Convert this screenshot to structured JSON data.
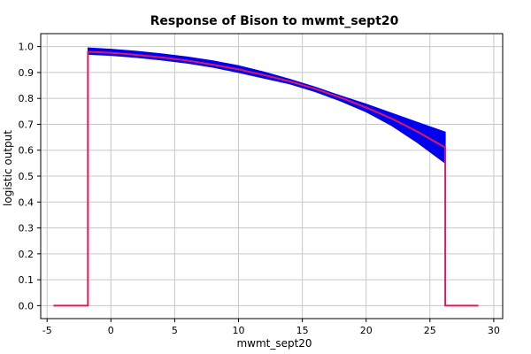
{
  "chart_data": {
    "type": "line",
    "title": "Response of Bison to mwmt_sept20",
    "xlabel": "mwmt_sept20",
    "ylabel": "logistic output",
    "xlim": [
      -5.5,
      30.7
    ],
    "ylim": [
      -0.05,
      1.05
    ],
    "x_ticks": [
      -5,
      0,
      5,
      10,
      15,
      20,
      25,
      30
    ],
    "y_ticks": [
      0.0,
      0.1,
      0.2,
      0.3,
      0.4,
      0.5,
      0.6,
      0.7,
      0.8,
      0.9,
      1.0
    ],
    "x_tick_labels": [
      "-5",
      "0",
      "5",
      "10",
      "15",
      "20",
      "25",
      "30"
    ],
    "y_tick_labels": [
      "0.0",
      "0.1",
      "0.2",
      "0.3",
      "0.4",
      "0.5",
      "0.6",
      "0.7",
      "0.8",
      "0.9",
      "1.0"
    ],
    "grid": true,
    "series": [
      {
        "role": "mean",
        "color": "#d81b60",
        "x": [
          -4.5,
          -1.8,
          -1.8,
          0,
          2,
          4,
          6,
          8,
          10,
          12,
          14,
          16,
          18,
          20,
          22,
          24,
          26.2,
          26.2,
          28.8
        ],
        "y": [
          0.0,
          0.0,
          0.98,
          0.976,
          0.968,
          0.958,
          0.946,
          0.93,
          0.912,
          0.89,
          0.866,
          0.837,
          0.803,
          0.765,
          0.722,
          0.672,
          0.61,
          0.0,
          0.0
        ]
      },
      {
        "role": "band",
        "color": "#0000ee",
        "x": [
          -1.8,
          0,
          2,
          4,
          6,
          8,
          10,
          12,
          14,
          16,
          18,
          20,
          22,
          24,
          26.2
        ],
        "upper": [
          0.995,
          0.99,
          0.982,
          0.972,
          0.96,
          0.945,
          0.926,
          0.902,
          0.874,
          0.844,
          0.81,
          0.778,
          0.743,
          0.708,
          0.67
        ],
        "lower": [
          0.97,
          0.966,
          0.958,
          0.948,
          0.936,
          0.92,
          0.9,
          0.878,
          0.856,
          0.826,
          0.79,
          0.748,
          0.695,
          0.63,
          0.55
        ]
      }
    ]
  }
}
